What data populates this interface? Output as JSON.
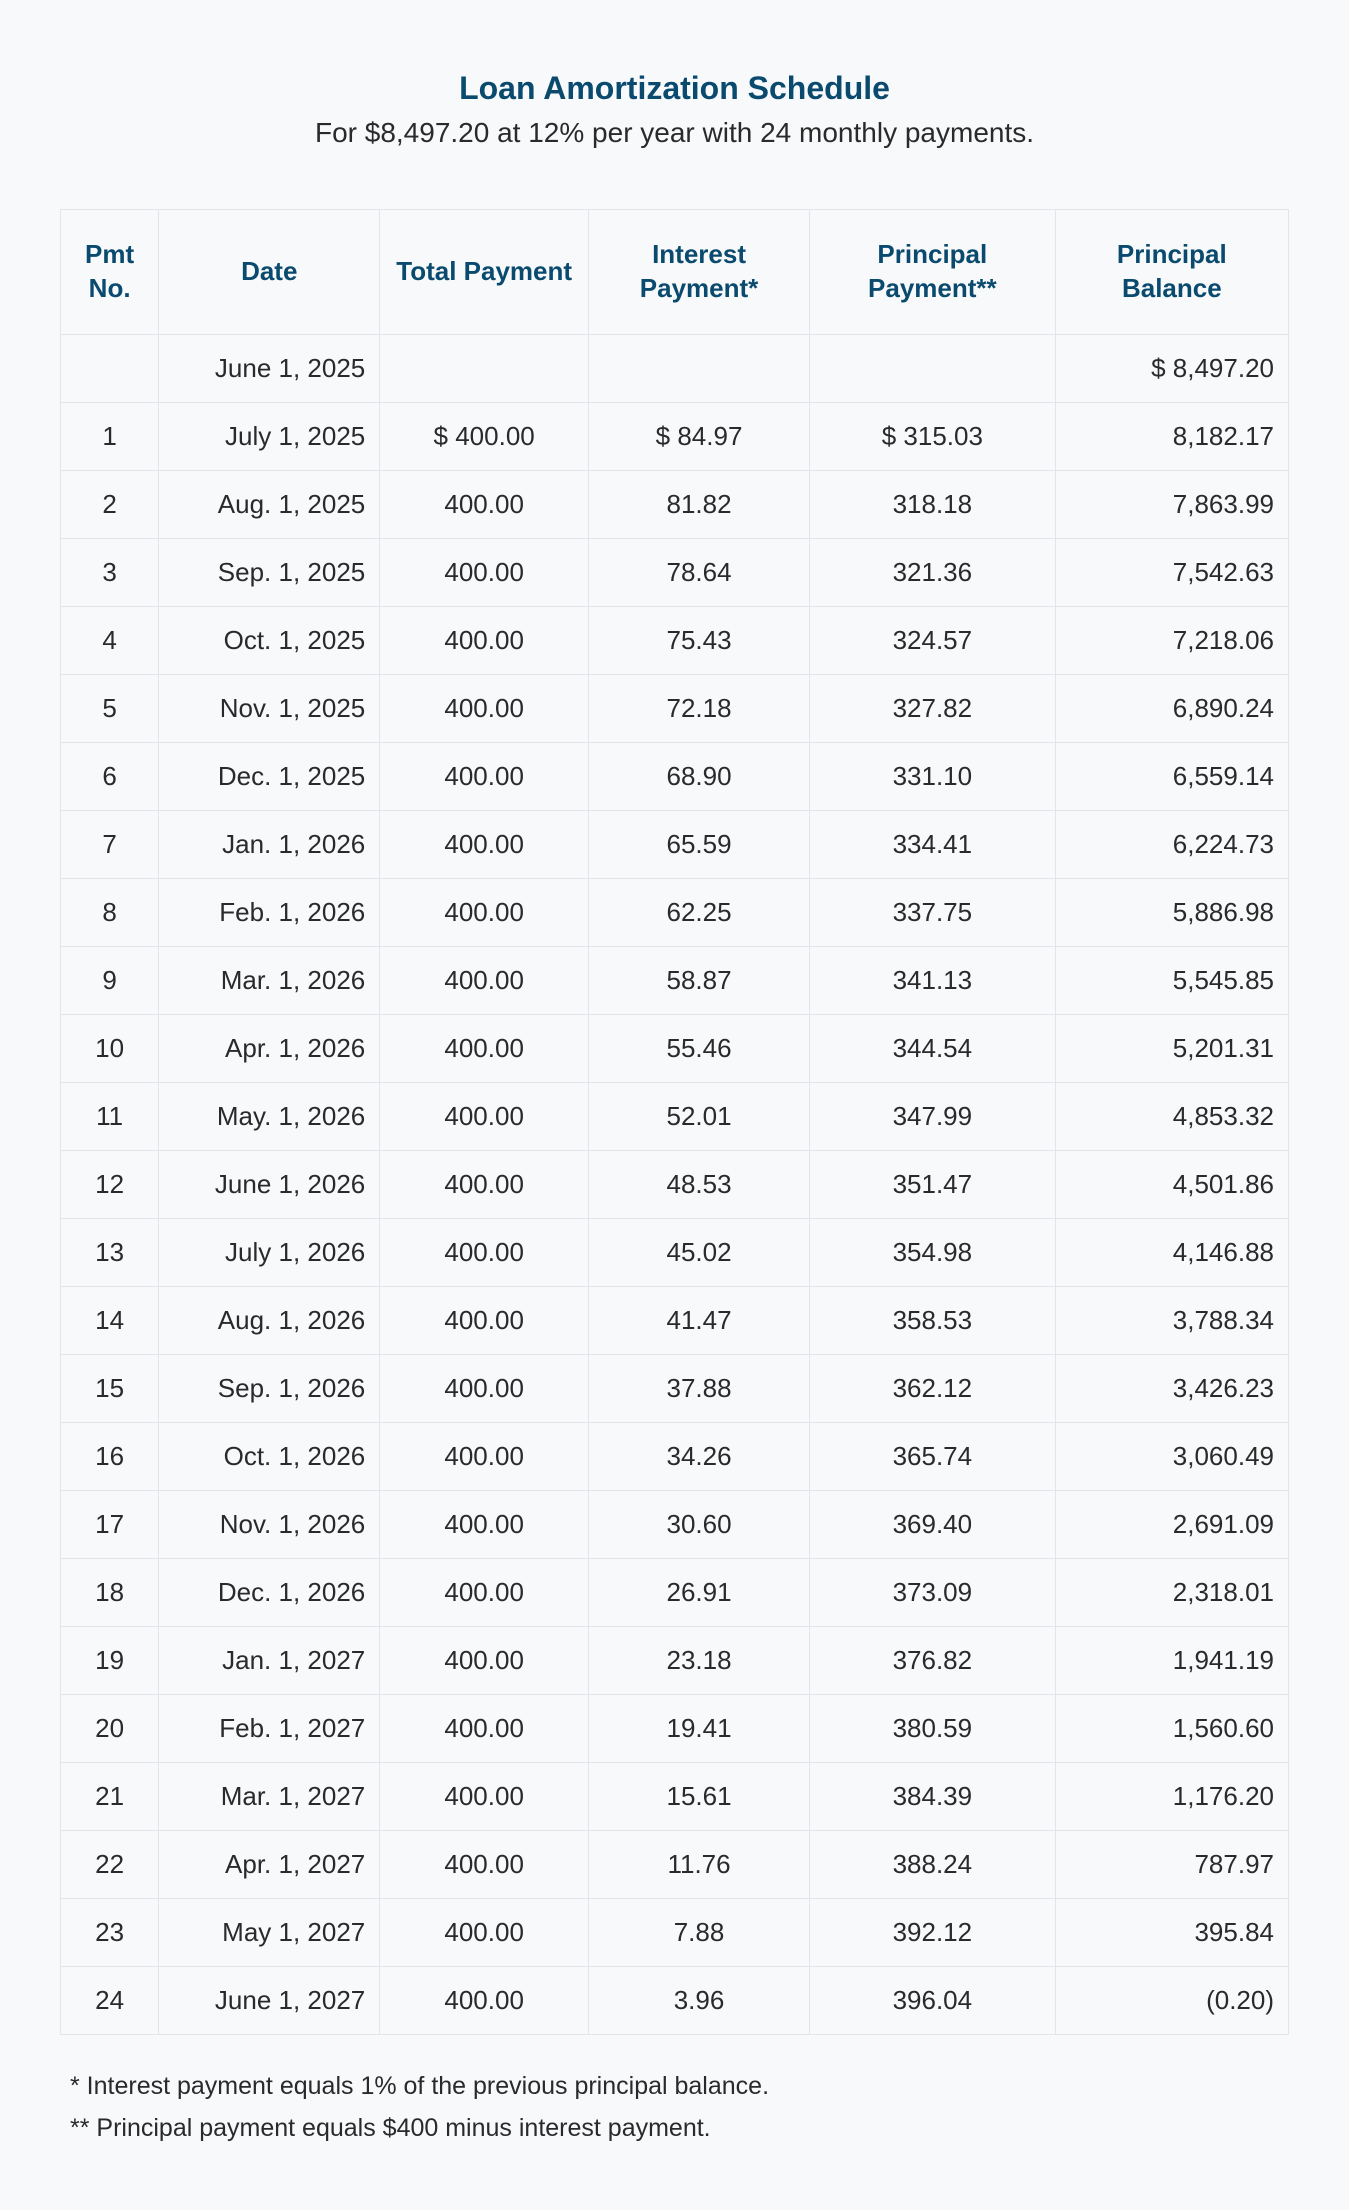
{
  "header": {
    "title": "Loan Amortization Schedule",
    "subtitle": "For $8,497.20 at 12% per year with 24 monthly payments."
  },
  "table": {
    "columns": {
      "no": "Pmt No.",
      "date": "Date",
      "total": "Total Payment",
      "interest": "Interest Payment*",
      "principal": "Principal Payment**",
      "balance": "Principal Balance"
    },
    "rows": [
      {
        "no": "",
        "date": "June 1, 2025",
        "total": "",
        "interest": "",
        "principal": "",
        "balance": "$ 8,497.20"
      },
      {
        "no": "1",
        "date": "July 1, 2025",
        "total": "$ 400.00",
        "interest": "$ 84.97",
        "principal": "$ 315.03",
        "balance": "8,182.17"
      },
      {
        "no": "2",
        "date": "Aug. 1, 2025",
        "total": "400.00",
        "interest": "81.82",
        "principal": "318.18",
        "balance": "7,863.99"
      },
      {
        "no": "3",
        "date": "Sep. 1, 2025",
        "total": "400.00",
        "interest": "78.64",
        "principal": "321.36",
        "balance": "7,542.63"
      },
      {
        "no": "4",
        "date": "Oct. 1, 2025",
        "total": "400.00",
        "interest": "75.43",
        "principal": "324.57",
        "balance": "7,218.06"
      },
      {
        "no": "5",
        "date": "Nov. 1, 2025",
        "total": "400.00",
        "interest": "72.18",
        "principal": "327.82",
        "balance": "6,890.24"
      },
      {
        "no": "6",
        "date": "Dec. 1, 2025",
        "total": "400.00",
        "interest": "68.90",
        "principal": "331.10",
        "balance": "6,559.14"
      },
      {
        "no": "7",
        "date": "Jan. 1, 2026",
        "total": "400.00",
        "interest": "65.59",
        "principal": "334.41",
        "balance": "6,224.73"
      },
      {
        "no": "8",
        "date": "Feb. 1, 2026",
        "total": "400.00",
        "interest": "62.25",
        "principal": "337.75",
        "balance": "5,886.98"
      },
      {
        "no": "9",
        "date": "Mar. 1, 2026",
        "total": "400.00",
        "interest": "58.87",
        "principal": "341.13",
        "balance": "5,545.85"
      },
      {
        "no": "10",
        "date": "Apr. 1, 2026",
        "total": "400.00",
        "interest": "55.46",
        "principal": "344.54",
        "balance": "5,201.31"
      },
      {
        "no": "11",
        "date": "May. 1, 2026",
        "total": "400.00",
        "interest": "52.01",
        "principal": "347.99",
        "balance": "4,853.32"
      },
      {
        "no": "12",
        "date": "June 1, 2026",
        "total": "400.00",
        "interest": "48.53",
        "principal": "351.47",
        "balance": "4,501.86"
      },
      {
        "no": "13",
        "date": "July 1, 2026",
        "total": "400.00",
        "interest": "45.02",
        "principal": "354.98",
        "balance": "4,146.88"
      },
      {
        "no": "14",
        "date": "Aug. 1, 2026",
        "total": "400.00",
        "interest": "41.47",
        "principal": "358.53",
        "balance": "3,788.34"
      },
      {
        "no": "15",
        "date": "Sep. 1, 2026",
        "total": "400.00",
        "interest": "37.88",
        "principal": "362.12",
        "balance": "3,426.23"
      },
      {
        "no": "16",
        "date": "Oct. 1, 2026",
        "total": "400.00",
        "interest": "34.26",
        "principal": "365.74",
        "balance": "3,060.49"
      },
      {
        "no": "17",
        "date": "Nov. 1, 2026",
        "total": "400.00",
        "interest": "30.60",
        "principal": "369.40",
        "balance": "2,691.09"
      },
      {
        "no": "18",
        "date": "Dec. 1, 2026",
        "total": "400.00",
        "interest": "26.91",
        "principal": "373.09",
        "balance": "2,318.01"
      },
      {
        "no": "19",
        "date": "Jan. 1, 2027",
        "total": "400.00",
        "interest": "23.18",
        "principal": "376.82",
        "balance": "1,941.19"
      },
      {
        "no": "20",
        "date": "Feb. 1, 2027",
        "total": "400.00",
        "interest": "19.41",
        "principal": "380.59",
        "balance": "1,560.60"
      },
      {
        "no": "21",
        "date": "Mar. 1, 2027",
        "total": "400.00",
        "interest": "15.61",
        "principal": "384.39",
        "balance": "1,176.20"
      },
      {
        "no": "22",
        "date": "Apr. 1, 2027",
        "total": "400.00",
        "interest": "11.76",
        "principal": "388.24",
        "balance": "787.97"
      },
      {
        "no": "23",
        "date": "May 1, 2027",
        "total": "400.00",
        "interest": "7.88",
        "principal": "392.12",
        "balance": "395.84"
      },
      {
        "no": "24",
        "date": "June 1, 2027",
        "total": "400.00",
        "interest": "3.96",
        "principal": "396.04",
        "balance": "(0.20)"
      }
    ]
  },
  "footnotes": {
    "note1": "* Interest payment equals 1% of the previous principal balance.",
    "note2": "** Principal payment equals $400 minus interest payment."
  },
  "style": {
    "type": "table",
    "background_color": "#f7f9fa",
    "border_color": "#e2e6ea",
    "header_text_color": "#0a4a6e",
    "body_text_color": "#2a2a2a",
    "title_fontsize": 32,
    "subtitle_fontsize": 28,
    "header_fontsize": 26,
    "cell_fontsize": 26,
    "footnote_fontsize": 25,
    "column_widths_pct": [
      8,
      18,
      17,
      18,
      20,
      19
    ],
    "column_align": [
      "center",
      "right",
      "center",
      "center",
      "center",
      "right"
    ]
  }
}
